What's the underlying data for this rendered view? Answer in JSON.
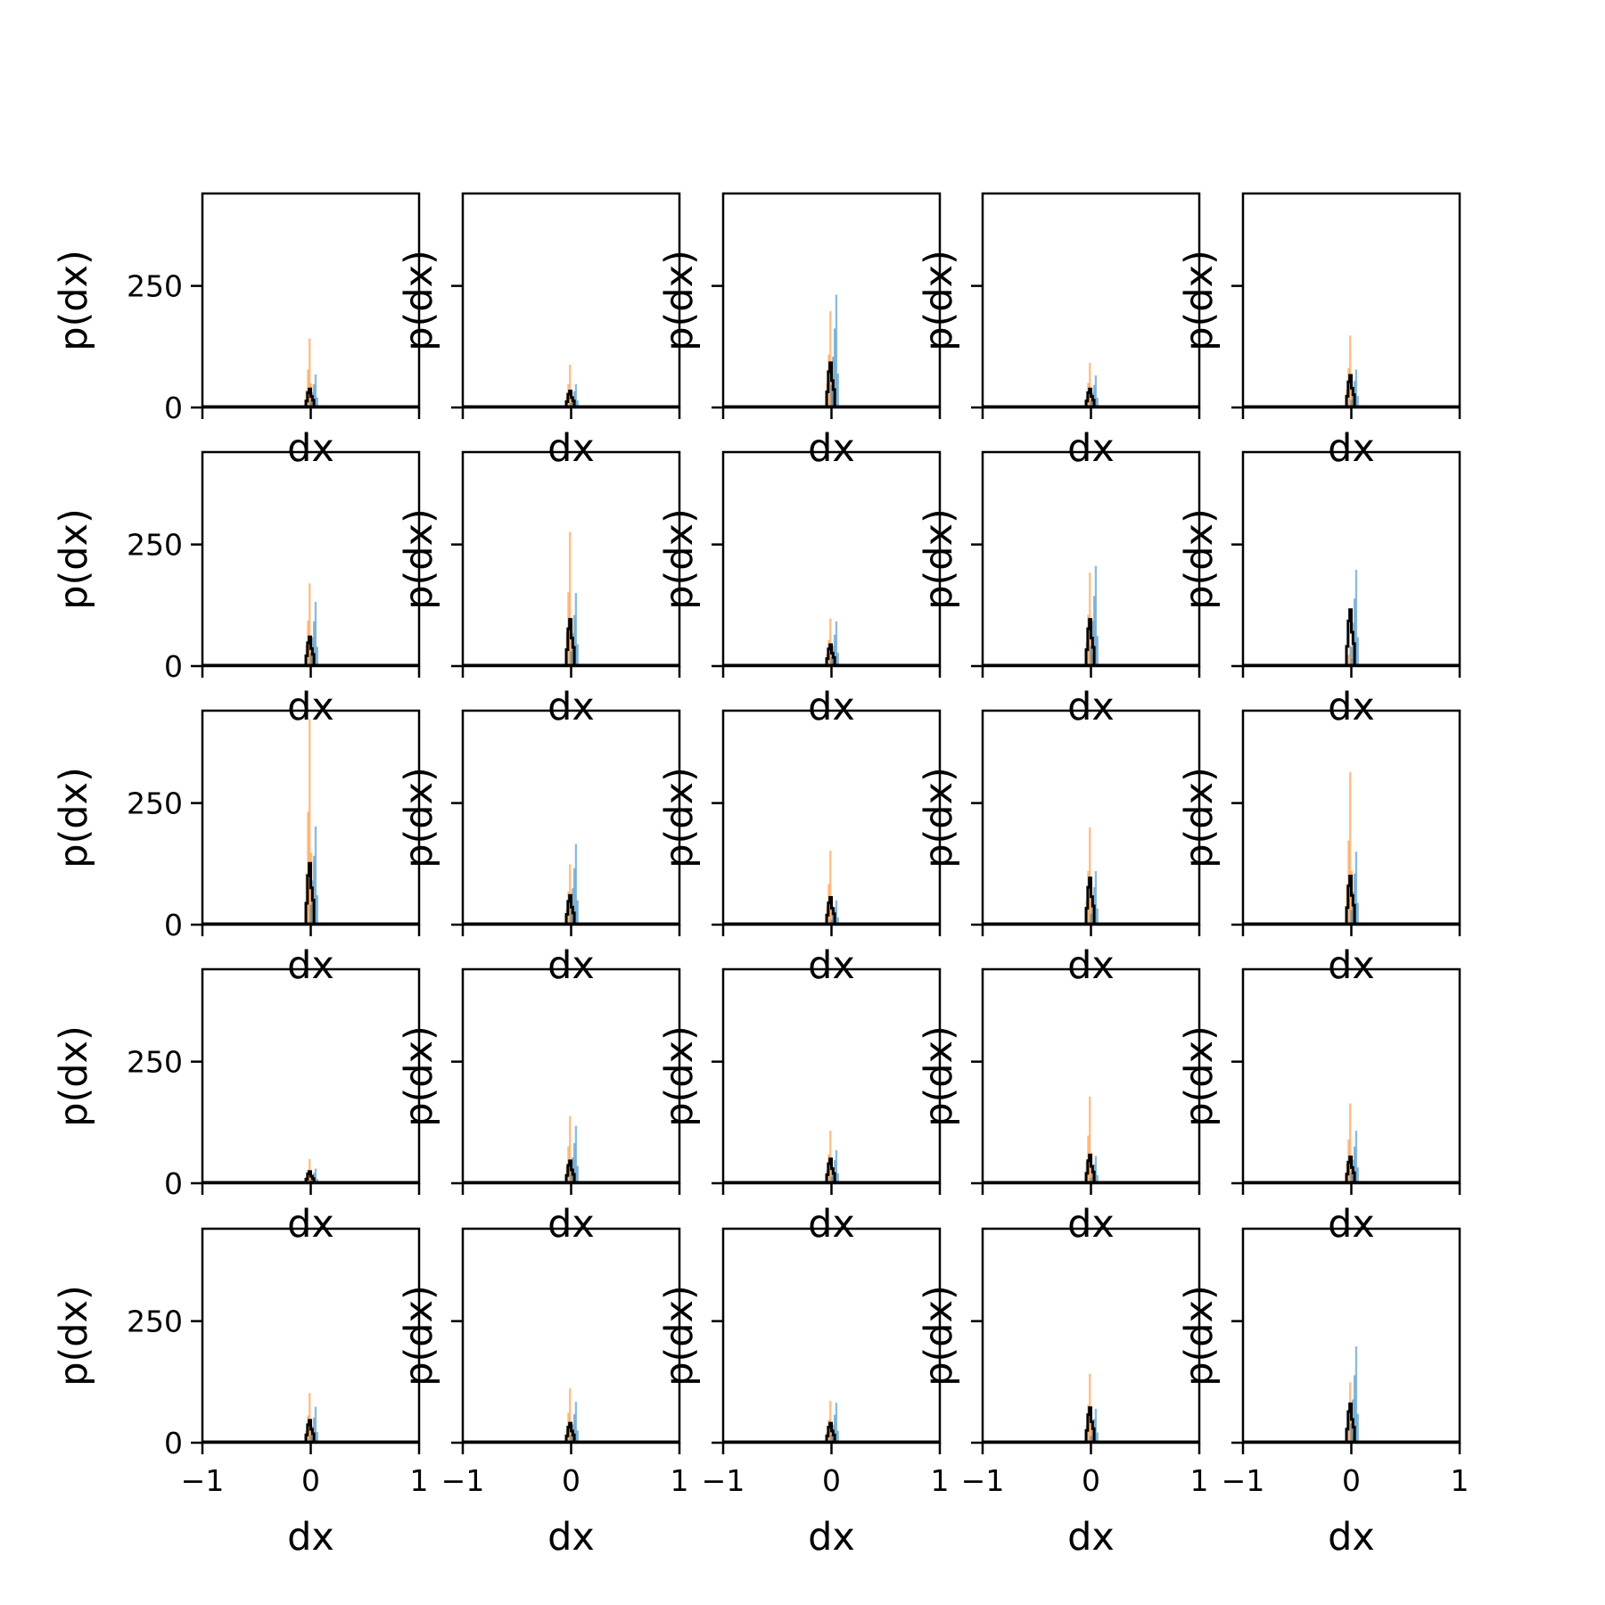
{
  "chart_data": {
    "type": "histogram-grid",
    "rows": 5,
    "cols": 5,
    "xlabel": "dx",
    "ylabel": "p(dx)",
    "xlim": [
      -1,
      1
    ],
    "ylim": [
      0,
      440
    ],
    "xticks": [
      "−1",
      "0",
      "1"
    ],
    "yticks": [
      "0",
      "250"
    ],
    "series_colors": {
      "blue": "#1f77b4",
      "orange": "#ff7f0e",
      "black": "#000000"
    },
    "bar_alpha": 0.5,
    "panels": [
      {
        "row": 0,
        "col": 0,
        "orange_peak": 142,
        "blue_peak": 68,
        "black_peak": 38
      },
      {
        "row": 0,
        "col": 1,
        "orange_peak": 88,
        "blue_peak": 48,
        "black_peak": 34
      },
      {
        "row": 0,
        "col": 2,
        "orange_peak": 198,
        "blue_peak": 232,
        "black_peak": 92
      },
      {
        "row": 0,
        "col": 3,
        "orange_peak": 92,
        "blue_peak": 66,
        "black_peak": 38
      },
      {
        "row": 0,
        "col": 4,
        "orange_peak": 148,
        "blue_peak": 78,
        "black_peak": 66
      },
      {
        "row": 1,
        "col": 0,
        "orange_peak": 170,
        "blue_peak": 132,
        "black_peak": 60
      },
      {
        "row": 1,
        "col": 1,
        "orange_peak": 276,
        "blue_peak": 150,
        "black_peak": 96
      },
      {
        "row": 1,
        "col": 2,
        "orange_peak": 98,
        "blue_peak": 92,
        "black_peak": 44
      },
      {
        "row": 1,
        "col": 3,
        "orange_peak": 192,
        "blue_peak": 206,
        "black_peak": 96
      },
      {
        "row": 1,
        "col": 4,
        "orange_peak": 42,
        "blue_peak": 198,
        "black_peak": 116
      },
      {
        "row": 2,
        "col": 0,
        "orange_peak": 422,
        "blue_peak": 202,
        "black_peak": 126
      },
      {
        "row": 2,
        "col": 1,
        "orange_peak": 124,
        "blue_peak": 166,
        "black_peak": 60
      },
      {
        "row": 2,
        "col": 2,
        "orange_peak": 152,
        "blue_peak": 50,
        "black_peak": 56
      },
      {
        "row": 2,
        "col": 3,
        "orange_peak": 200,
        "blue_peak": 110,
        "black_peak": 96
      },
      {
        "row": 2,
        "col": 4,
        "orange_peak": 314,
        "blue_peak": 150,
        "black_peak": 100
      },
      {
        "row": 3,
        "col": 0,
        "orange_peak": 50,
        "blue_peak": 30,
        "black_peak": 24
      },
      {
        "row": 3,
        "col": 1,
        "orange_peak": 138,
        "blue_peak": 118,
        "black_peak": 46
      },
      {
        "row": 3,
        "col": 2,
        "orange_peak": 108,
        "blue_peak": 68,
        "black_peak": 50
      },
      {
        "row": 3,
        "col": 3,
        "orange_peak": 178,
        "blue_peak": 56,
        "black_peak": 58
      },
      {
        "row": 3,
        "col": 4,
        "orange_peak": 164,
        "blue_peak": 108,
        "black_peak": 54
      },
      {
        "row": 4,
        "col": 0,
        "orange_peak": 102,
        "blue_peak": 74,
        "black_peak": 46
      },
      {
        "row": 4,
        "col": 1,
        "orange_peak": 112,
        "blue_peak": 84,
        "black_peak": 40
      },
      {
        "row": 4,
        "col": 2,
        "orange_peak": 86,
        "blue_peak": 82,
        "black_peak": 40
      },
      {
        "row": 4,
        "col": 3,
        "orange_peak": 142,
        "blue_peak": 70,
        "black_peak": 72
      },
      {
        "row": 4,
        "col": 4,
        "orange_peak": 124,
        "blue_peak": 198,
        "black_peak": 80
      }
    ]
  }
}
